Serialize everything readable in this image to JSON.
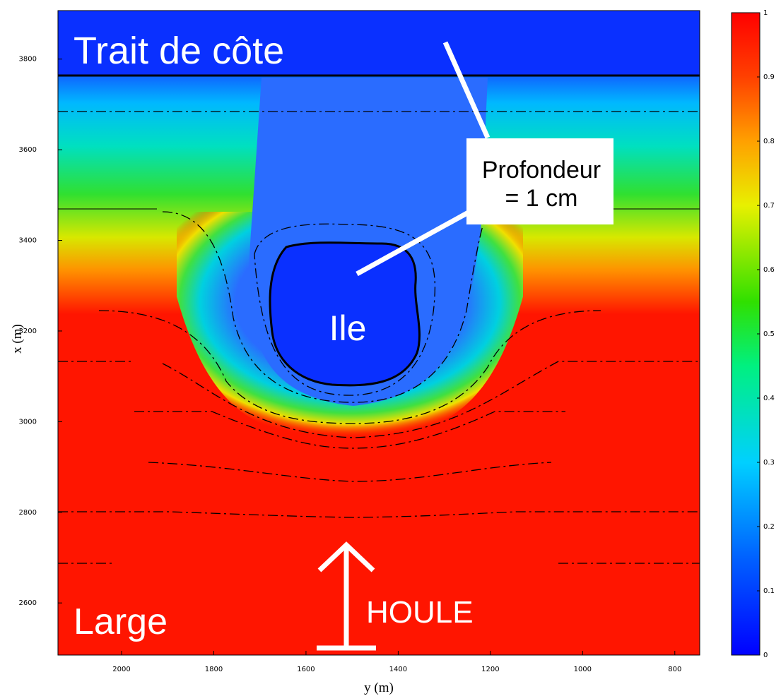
{
  "chart_data": {
    "type": "heatmap",
    "xlabel": "y (m)",
    "ylabel": "x (m)",
    "xlim": [
      2138,
      746
    ],
    "xticks": [
      2000,
      1800,
      1600,
      1400,
      1200,
      1000,
      800
    ],
    "ylim": [
      2485,
      3907
    ],
    "yticks": [
      2600,
      2800,
      3000,
      3200,
      3400,
      3600,
      3800
    ],
    "clim": [
      0,
      1
    ],
    "cticks": [
      0,
      0.1,
      0.2,
      0.3,
      0.4,
      0.5,
      0.6,
      0.7,
      0.8,
      0.9,
      1
    ],
    "annotations": [
      "Trait de côte",
      "Profondeur",
      "= 1 cm",
      "Ile",
      "Large",
      "HOULE"
    ]
  }
}
